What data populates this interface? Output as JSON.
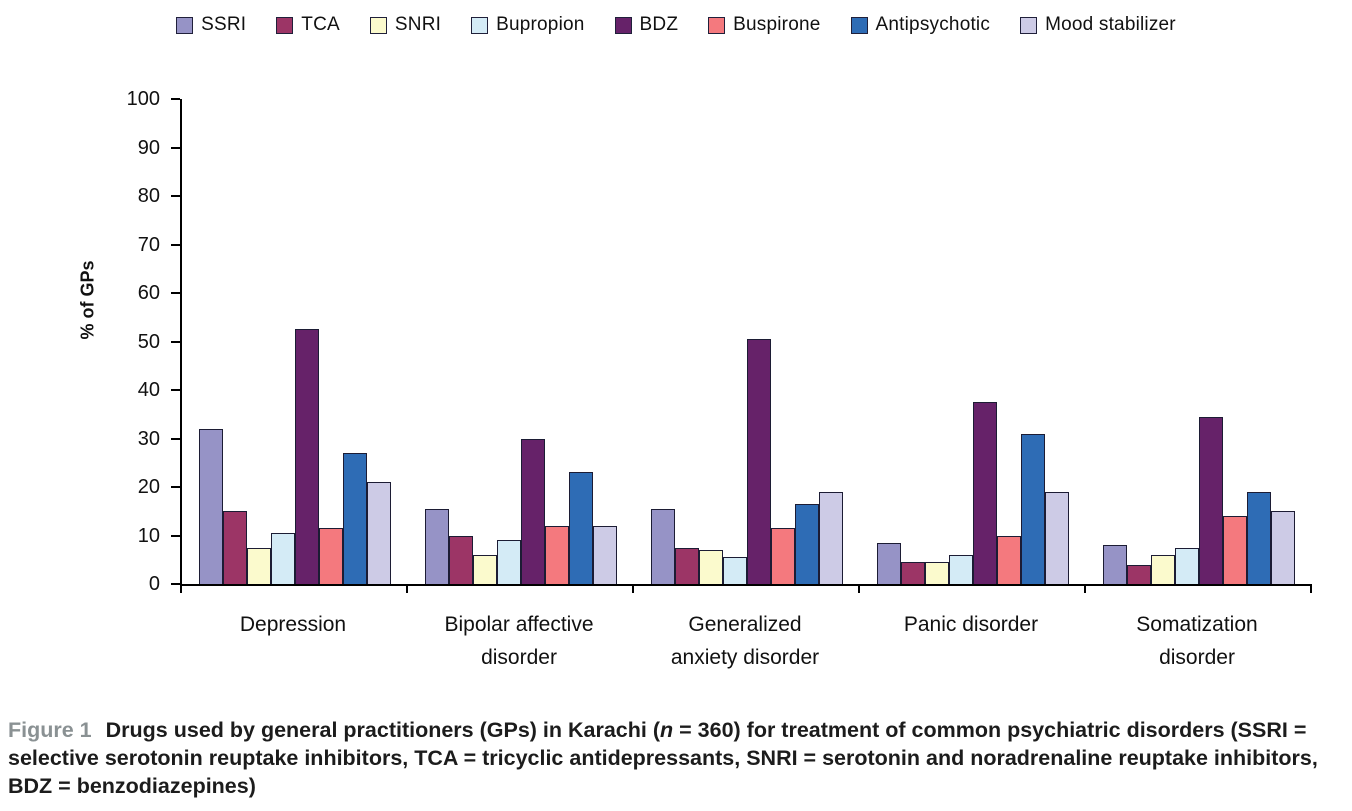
{
  "chart_data": {
    "type": "bar",
    "title": "",
    "ylabel": "% of GPs",
    "xlabel": "",
    "ylim": [
      0,
      100
    ],
    "yticks": [
      0,
      10,
      20,
      30,
      40,
      50,
      60,
      70,
      80,
      90,
      100
    ],
    "grid": false,
    "legend_position": "top",
    "categories": [
      "Depression",
      "Bipolar affective disorder",
      "Generalized anxiety disorder",
      "Panic disorder",
      "Somatization disorder"
    ],
    "category_label_lines": [
      [
        "Depression"
      ],
      [
        "Bipolar affective",
        "disorder"
      ],
      [
        "Generalized",
        "anxiety disorder"
      ],
      [
        "Panic disorder"
      ],
      [
        "Somatization",
        "disorder"
      ]
    ],
    "series": [
      {
        "name": "SSRI",
        "color": "#9693C6",
        "values": [
          32,
          15.5,
          15.5,
          8.5,
          8
        ]
      },
      {
        "name": "TCA",
        "color": "#9C3566",
        "values": [
          15,
          10,
          7.5,
          4.5,
          4
        ]
      },
      {
        "name": "SNRI",
        "color": "#FBFACD",
        "values": [
          7.5,
          6,
          7,
          4.5,
          6
        ]
      },
      {
        "name": "Bupropion",
        "color": "#D4EBF6",
        "values": [
          10.5,
          9,
          5.5,
          6,
          7.5
        ]
      },
      {
        "name": "BDZ",
        "color": "#662269",
        "values": [
          52.5,
          30,
          50.5,
          37.5,
          34.5
        ]
      },
      {
        "name": "Buspirone",
        "color": "#F4797E",
        "values": [
          11.5,
          12,
          11.5,
          10,
          14
        ]
      },
      {
        "name": "Antipsychotic",
        "color": "#2E6CB5",
        "values": [
          27,
          23,
          16.5,
          31,
          19
        ]
      },
      {
        "name": "Mood stabilizer",
        "color": "#CDCBE6",
        "values": [
          21,
          12,
          19,
          19,
          15
        ]
      }
    ],
    "axis_color": "#000000",
    "bar_border_color": "#1c1c34"
  },
  "caption": {
    "figure_label": "Figure 1",
    "part1": "Drugs used by general practitioners (GPs) in Karachi (",
    "n": "n",
    "part2": " = 360) for treatment of common psychiatric disorders (SSRI = selective serotonin reuptake inhibitors, TCA = tricyclic antidepressants, SNRI = serotonin and noradrenaline reuptake inhibitors, BDZ = benzodiazepines)"
  }
}
